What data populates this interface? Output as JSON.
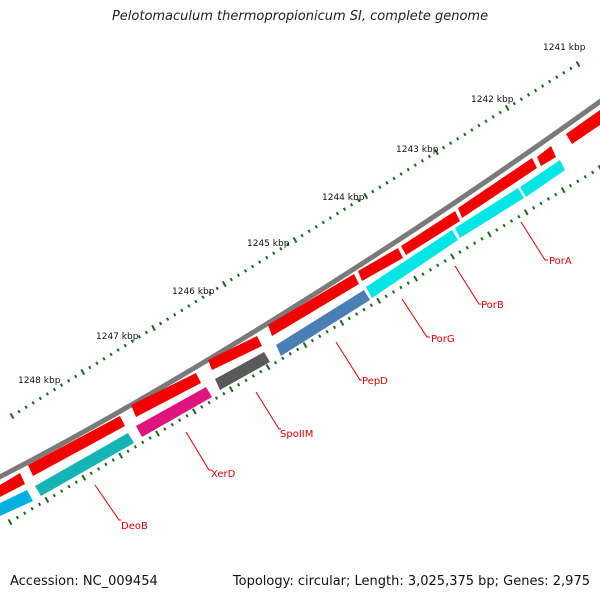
{
  "title": "Pelotomaculum thermopropionicum SI, complete genome",
  "footer": {
    "accession": "Accession: NC_009454",
    "summary": "Topology: circular; Length: 3,025,375 bp; Genes: 2,975"
  },
  "colors": {
    "backbone": "#7a7a7a",
    "forward_gene": "#f20000",
    "tick_major": "#1c6b1c",
    "label": "#e00000"
  },
  "scale": {
    "unit": "kbp",
    "labels": [
      "1241 kbp",
      "1242 kbp",
      "1243 kbp",
      "1244 kbp",
      "1245 kbp",
      "1246 kbp",
      "1247 kbp",
      "1248 kbp"
    ]
  },
  "genes": [
    {
      "name": "PorA",
      "color": "#00e5e5",
      "strand": "reverse"
    },
    {
      "name": "PorB",
      "color": "#00e5e5",
      "strand": "reverse"
    },
    {
      "name": "PorG",
      "color": "#00e5e5",
      "strand": "reverse"
    },
    {
      "name": "PepD",
      "color": "#4a7fb5",
      "strand": "reverse"
    },
    {
      "name": "SpoIIM",
      "color": "#5a5a5a",
      "strand": "reverse"
    },
    {
      "name": "XerD",
      "color": "#e0147e",
      "strand": "reverse"
    },
    {
      "name": "DeoB",
      "color": "#14b4b4",
      "strand": "reverse"
    }
  ]
}
